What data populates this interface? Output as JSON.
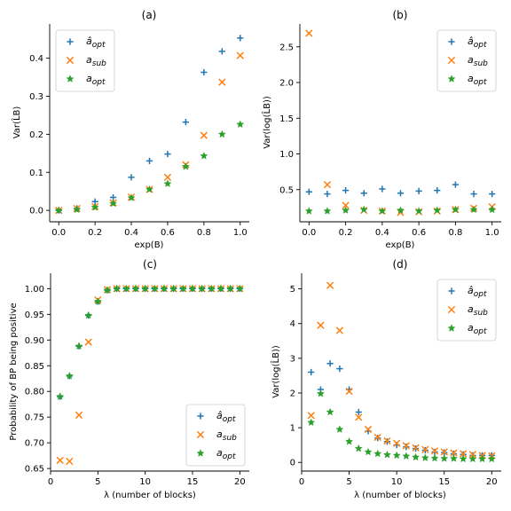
{
  "colors": {
    "a_hat_opt": "#1f77b4",
    "a_sub": "#ff7f0e",
    "a_opt": "#2ca02c"
  },
  "legend_labels": {
    "a_hat_opt": "âopt",
    "a_sub": "asub",
    "a_opt": "aopt"
  },
  "chart_data": [
    {
      "type": "scatter",
      "title": "(a)",
      "xlabel": "exp(B)",
      "ylabel": "Var(L̂B)",
      "xlim": [
        -0.05,
        1.05
      ],
      "ylim": [
        -0.03,
        0.49
      ],
      "xticks": [
        0.0,
        0.2,
        0.4,
        0.6,
        0.8,
        1.0
      ],
      "xtick_labels": [
        "0.0",
        "0.2",
        "0.4",
        "0.6",
        "0.8",
        "1.0"
      ],
      "yticks": [
        0.0,
        0.1,
        0.2,
        0.3,
        0.4
      ],
      "ytick_labels": [
        "0.0",
        "0.1",
        "0.2",
        "0.3",
        "0.4"
      ],
      "legend_position": "top-left",
      "x": [
        0.0,
        0.1,
        0.2,
        0.3,
        0.4,
        0.5,
        0.6,
        0.7,
        0.8,
        0.9,
        1.0
      ],
      "series": [
        {
          "name": "âopt",
          "marker": "plus",
          "color_key": "a_hat_opt",
          "values": [
            0.0,
            0.005,
            0.023,
            0.034,
            0.087,
            0.13,
            0.148,
            0.232,
            0.363,
            0.418,
            0.453
          ]
        },
        {
          "name": "asub",
          "marker": "x",
          "color_key": "a_sub",
          "values": [
            0.0,
            0.005,
            0.01,
            0.02,
            0.035,
            0.055,
            0.087,
            0.12,
            0.197,
            0.337,
            0.407
          ]
        },
        {
          "name": "aopt",
          "marker": "star",
          "color_key": "a_opt",
          "values": [
            0.0,
            0.002,
            0.008,
            0.018,
            0.033,
            0.055,
            0.07,
            0.115,
            0.143,
            0.2,
            0.226
          ]
        }
      ]
    },
    {
      "type": "scatter",
      "title": "(b)",
      "xlabel": "exp(B)",
      "ylabel": "Var(log(L̂B))",
      "xlim": [
        -0.05,
        1.05
      ],
      "ylim": [
        0.05,
        2.82
      ],
      "xticks": [
        0.0,
        0.2,
        0.4,
        0.6,
        0.8,
        1.0
      ],
      "xtick_labels": [
        "0.0",
        "0.2",
        "0.4",
        "0.6",
        "0.8",
        "1.0"
      ],
      "yticks": [
        0.5,
        1.0,
        1.5,
        2.0,
        2.5
      ],
      "ytick_labels": [
        "0.5",
        "1.0",
        "1.5",
        "2.0",
        "2.5"
      ],
      "legend_position": "top-right",
      "x": [
        0.0,
        0.1,
        0.2,
        0.3,
        0.4,
        0.5,
        0.6,
        0.7,
        0.8,
        0.9,
        1.0
      ],
      "series": [
        {
          "name": "âopt",
          "marker": "plus",
          "color_key": "a_hat_opt",
          "values": [
            0.47,
            0.44,
            0.49,
            0.45,
            0.51,
            0.45,
            0.48,
            0.49,
            0.57,
            0.44,
            0.44
          ]
        },
        {
          "name": "asub",
          "marker": "x",
          "color_key": "a_sub",
          "values": [
            2.69,
            0.57,
            0.28,
            0.21,
            0.2,
            0.18,
            0.19,
            0.2,
            0.22,
            0.24,
            0.26
          ]
        },
        {
          "name": "aopt",
          "marker": "star",
          "color_key": "a_opt",
          "values": [
            0.2,
            0.2,
            0.21,
            0.22,
            0.2,
            0.21,
            0.2,
            0.21,
            0.22,
            0.22,
            0.22
          ]
        }
      ]
    },
    {
      "type": "scatter",
      "title": "(c)",
      "xlabel": "λ (number of blocks)",
      "ylabel": "Probability of BP being positive",
      "xlim": [
        0,
        21
      ],
      "ylim": [
        0.645,
        1.03
      ],
      "xticks": [
        0,
        5,
        10,
        15,
        20
      ],
      "xtick_labels": [
        "0",
        "5",
        "10",
        "15",
        "20"
      ],
      "yticks": [
        0.65,
        0.7,
        0.75,
        0.8,
        0.85,
        0.9,
        0.95,
        1.0
      ],
      "ytick_labels": [
        "0.65",
        "0.70",
        "0.75",
        "0.80",
        "0.85",
        "0.90",
        "0.95",
        "1.00"
      ],
      "legend_position": "bottom-right",
      "x": [
        1,
        2,
        3,
        4,
        5,
        6,
        7,
        8,
        9,
        10,
        11,
        12,
        13,
        14,
        15,
        16,
        17,
        18,
        19,
        20
      ],
      "series": [
        {
          "name": "âopt",
          "marker": "plus",
          "color_key": "a_hat_opt",
          "values": [
            0.79,
            0.83,
            0.888,
            0.948,
            0.975,
            0.997,
            1.0,
            1.0,
            1.0,
            1.0,
            1.0,
            1.0,
            1.0,
            1.0,
            1.0,
            1.0,
            1.0,
            1.0,
            1.0,
            1.0
          ]
        },
        {
          "name": "asub",
          "marker": "x",
          "color_key": "a_sub",
          "values": [
            0.666,
            0.664,
            0.754,
            0.896,
            0.978,
            0.998,
            1.0,
            1.0,
            1.0,
            1.0,
            1.0,
            1.0,
            1.0,
            1.0,
            1.0,
            1.0,
            1.0,
            1.0,
            1.0,
            1.0
          ]
        },
        {
          "name": "aopt",
          "marker": "star",
          "color_key": "a_opt",
          "values": [
            0.79,
            0.83,
            0.888,
            0.948,
            0.975,
            0.997,
            1.0,
            1.0,
            1.0,
            1.0,
            1.0,
            1.0,
            1.0,
            1.0,
            1.0,
            1.0,
            1.0,
            1.0,
            1.0,
            1.0
          ]
        }
      ]
    },
    {
      "type": "scatter",
      "title": "(d)",
      "xlabel": "λ (number of blocks)",
      "ylabel": "Var(log(L̂B))",
      "xlim": [
        0,
        21
      ],
      "ylim": [
        -0.25,
        5.45
      ],
      "xticks": [
        0,
        5,
        10,
        15,
        20
      ],
      "xtick_labels": [
        "0",
        "5",
        "10",
        "15",
        "20"
      ],
      "yticks": [
        0,
        1,
        2,
        3,
        4,
        5
      ],
      "ytick_labels": [
        "0",
        "1",
        "2",
        "3",
        "4",
        "5"
      ],
      "legend_position": "top-right",
      "x": [
        1,
        2,
        3,
        4,
        5,
        6,
        7,
        8,
        9,
        10,
        11,
        12,
        13,
        14,
        15,
        16,
        17,
        18,
        19,
        20
      ],
      "series": [
        {
          "name": "âopt",
          "marker": "plus",
          "color_key": "a_hat_opt",
          "values": [
            2.6,
            2.1,
            2.85,
            2.7,
            2.1,
            1.45,
            0.9,
            0.7,
            0.6,
            0.5,
            0.45,
            0.4,
            0.35,
            0.3,
            0.28,
            0.25,
            0.23,
            0.2,
            0.2,
            0.2
          ]
        },
        {
          "name": "asub",
          "marker": "x",
          "color_key": "a_sub",
          "values": [
            1.35,
            3.95,
            5.1,
            3.8,
            2.05,
            1.3,
            0.95,
            0.72,
            0.62,
            0.55,
            0.48,
            0.42,
            0.37,
            0.33,
            0.3,
            0.27,
            0.25,
            0.23,
            0.2,
            0.19
          ]
        },
        {
          "name": "aopt",
          "marker": "star",
          "color_key": "a_opt",
          "values": [
            1.15,
            1.98,
            1.45,
            0.95,
            0.6,
            0.4,
            0.3,
            0.25,
            0.22,
            0.2,
            0.18,
            0.15,
            0.13,
            0.12,
            0.11,
            0.11,
            0.1,
            0.1,
            0.1,
            0.1
          ]
        }
      ]
    }
  ]
}
